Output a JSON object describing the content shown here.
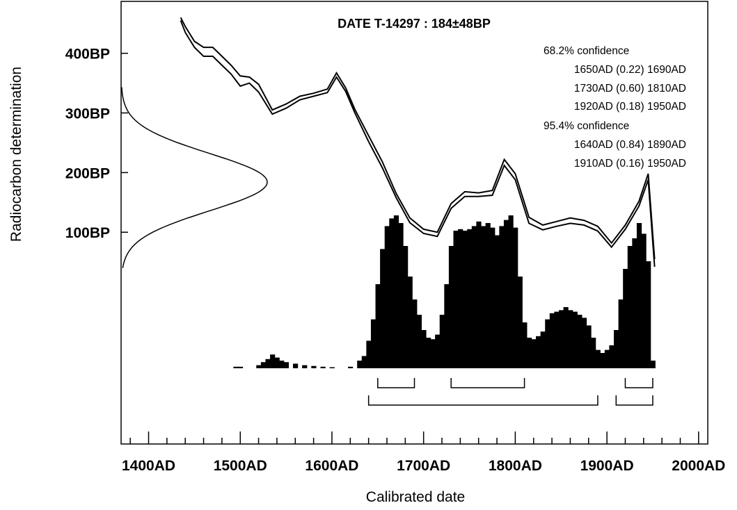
{
  "chart_data": {
    "type": "calibration-plot",
    "title": "DATE T-14297 : 184±48BP",
    "xlabel": "Calibrated date",
    "ylabel": "Radiocarbon determination",
    "x_ticks": [
      {
        "value": 1400,
        "label": "1400AD"
      },
      {
        "value": 1500,
        "label": "1500AD"
      },
      {
        "value": 1600,
        "label": "1600AD"
      },
      {
        "value": 1700,
        "label": "1700AD"
      },
      {
        "value": 1800,
        "label": "1800AD"
      },
      {
        "value": 1900,
        "label": "1900AD"
      },
      {
        "value": 2000,
        "label": "2000AD"
      }
    ],
    "y_ticks": [
      {
        "value": 100,
        "label": "100BP"
      },
      {
        "value": 200,
        "label": "200BP"
      },
      {
        "value": 300,
        "label": "300BP"
      },
      {
        "value": 400,
        "label": "400BP"
      }
    ],
    "xlim": [
      1370,
      2010
    ],
    "ylim": [
      -255,
      487
    ],
    "confidence": {
      "sigma1_label": "68.2% confidence",
      "sigma1_ranges": [
        {
          "from": 1650,
          "to": 1690,
          "prob": 0.22,
          "text": "1650AD (0.22) 1690AD"
        },
        {
          "from": 1730,
          "to": 1810,
          "prob": 0.6,
          "text": "1730AD (0.60) 1810AD"
        },
        {
          "from": 1920,
          "to": 1950,
          "prob": 0.18,
          "text": "1920AD (0.18) 1950AD"
        }
      ],
      "sigma2_label": "95.4% confidence",
      "sigma2_ranges": [
        {
          "from": 1640,
          "to": 1890,
          "prob": 0.84,
          "text": "1640AD (0.84) 1890AD"
        },
        {
          "from": 1910,
          "to": 1950,
          "prob": 0.16,
          "text": "1910AD (0.16) 1950AD"
        }
      ]
    },
    "measurement": {
      "mean": 184,
      "error": 48
    },
    "calibration_curve": {
      "x": [
        1435,
        1440,
        1450,
        1460,
        1470,
        1480,
        1490,
        1500,
        1510,
        1520,
        1535,
        1550,
        1565,
        1580,
        1595,
        1605,
        1615,
        1625,
        1640,
        1655,
        1670,
        1685,
        1700,
        1715,
        1730,
        1745,
        1760,
        1775,
        1788,
        1800,
        1815,
        1830,
        1845,
        1860,
        1875,
        1890,
        1905,
        1920,
        1935,
        1945,
        1952
      ],
      "upper": [
        460,
        445,
        420,
        410,
        410,
        395,
        380,
        362,
        360,
        348,
        305,
        315,
        328,
        333,
        340,
        367,
        342,
        306,
        262,
        218,
        165,
        124,
        105,
        100,
        148,
        168,
        166,
        170,
        222,
        198,
        125,
        112,
        118,
        124,
        120,
        110,
        82,
        112,
        152,
        198,
        55
      ],
      "lower": [
        455,
        435,
        410,
        395,
        395,
        380,
        365,
        345,
        350,
        335,
        298,
        308,
        322,
        328,
        334,
        360,
        336,
        300,
        252,
        208,
        158,
        116,
        98,
        93,
        140,
        160,
        160,
        162,
        212,
        188,
        115,
        104,
        110,
        115,
        112,
        102,
        75,
        105,
        144,
        188,
        42
      ]
    },
    "probability_histogram": {
      "x": [
        1495,
        1500,
        1520,
        1525,
        1530,
        1535,
        1540,
        1545,
        1550,
        1560,
        1570,
        1580,
        1590,
        1600,
        1620,
        1630,
        1635,
        1640,
        1645,
        1650,
        1655,
        1660,
        1665,
        1670,
        1675,
        1680,
        1685,
        1690,
        1695,
        1700,
        1705,
        1710,
        1715,
        1720,
        1725,
        1730,
        1735,
        1740,
        1745,
        1750,
        1755,
        1760,
        1765,
        1770,
        1775,
        1780,
        1785,
        1790,
        1795,
        1800,
        1805,
        1810,
        1815,
        1820,
        1825,
        1830,
        1835,
        1840,
        1845,
        1850,
        1855,
        1860,
        1865,
        1870,
        1875,
        1880,
        1885,
        1890,
        1895,
        1900,
        1905,
        1910,
        1915,
        1920,
        1925,
        1930,
        1935,
        1940,
        1945,
        1950
      ],
      "height": [
        0.01,
        0.01,
        0.02,
        0.04,
        0.06,
        0.09,
        0.07,
        0.05,
        0.04,
        0.03,
        0.02,
        0.015,
        0.01,
        0.005,
        0.01,
        0.05,
        0.08,
        0.18,
        0.32,
        0.55,
        0.78,
        0.93,
        0.98,
        1.0,
        0.95,
        0.8,
        0.6,
        0.45,
        0.35,
        0.25,
        0.2,
        0.19,
        0.22,
        0.35,
        0.55,
        0.8,
        0.9,
        0.91,
        0.9,
        0.91,
        0.93,
        0.96,
        0.93,
        0.95,
        0.92,
        0.87,
        0.93,
        0.97,
        1.0,
        0.92,
        0.6,
        0.3,
        0.2,
        0.19,
        0.21,
        0.24,
        0.32,
        0.36,
        0.37,
        0.38,
        0.4,
        0.38,
        0.37,
        0.35,
        0.33,
        0.28,
        0.2,
        0.12,
        0.1,
        0.12,
        0.15,
        0.25,
        0.45,
        0.65,
        0.8,
        0.85,
        0.95,
        0.88,
        0.7,
        0.05
      ]
    }
  }
}
